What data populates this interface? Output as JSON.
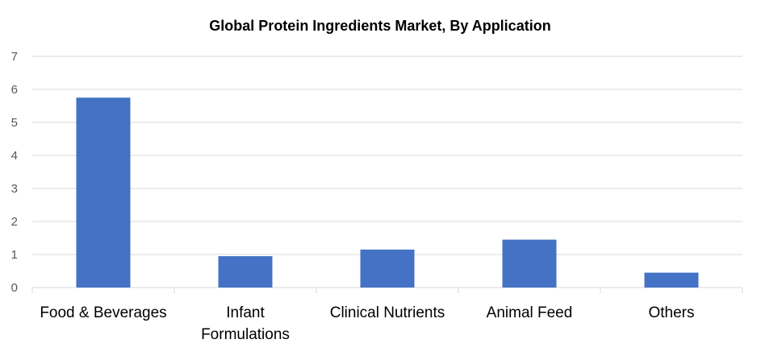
{
  "chart_data": {
    "type": "bar",
    "title": "Global Protein Ingredients Market, By Application",
    "categories": [
      [
        "Food & Beverages"
      ],
      [
        "Infant",
        "Formulations"
      ],
      [
        "Clinical Nutrients"
      ],
      [
        "Animal Feed"
      ],
      [
        "Others"
      ]
    ],
    "values": [
      5.75,
      0.95,
      1.15,
      1.45,
      0.45
    ],
    "ylim": [
      0,
      7
    ],
    "yticks": [
      "0",
      "1",
      "2",
      "3",
      "4",
      "5",
      "6",
      "7"
    ],
    "xlabel": "",
    "ylabel": "",
    "grid": true,
    "legend": "none",
    "bar_color": "#4472c4",
    "grid_color": "#d9d9d9"
  }
}
